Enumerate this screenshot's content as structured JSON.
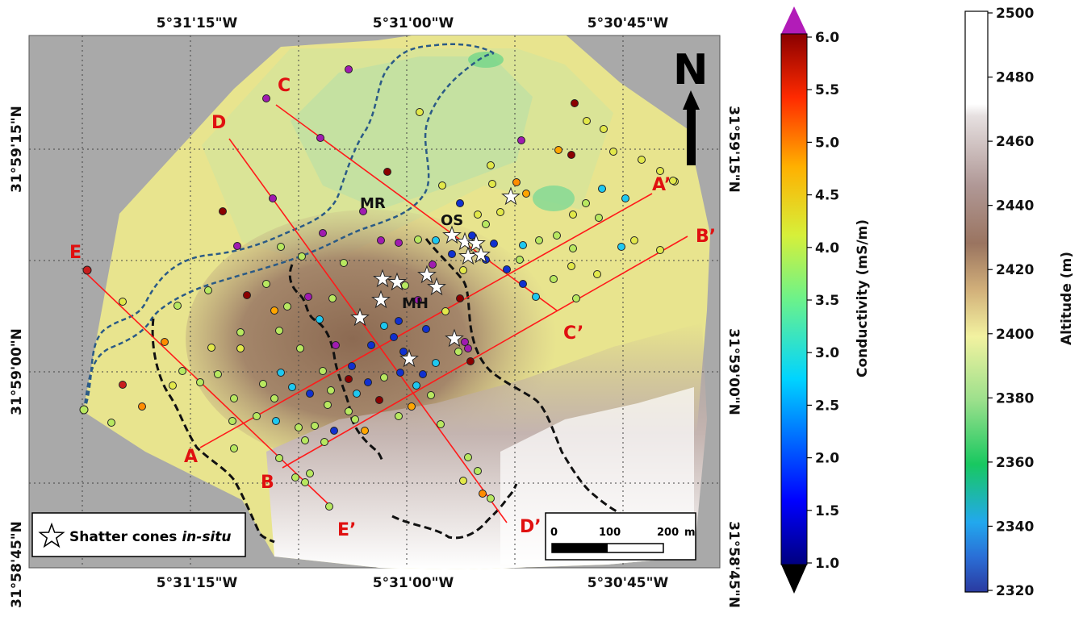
{
  "map": {
    "north_label": "N",
    "coordinates": {
      "top": [
        "5°31'15\"W",
        "5°31'00\"W",
        "5°30'45\"W"
      ],
      "bottom": [
        "5°31'15\"W",
        "5°31'00\"W",
        "5°30'45\"W"
      ],
      "left": [
        "31°59'15\"N",
        "31°59'00\"N",
        "31°58'45\"N"
      ],
      "right": [
        "31°59'15\"N",
        "31°59'00\"N",
        "31°58'45\"N"
      ]
    },
    "site_labels": [
      "MR",
      "OS",
      "MH"
    ],
    "sections": [
      {
        "start": "A",
        "end": "A’"
      },
      {
        "start": "B",
        "end": "B’"
      },
      {
        "start": "C",
        "end": "C’"
      },
      {
        "start": "D",
        "end": "D’"
      },
      {
        "start": "E",
        "end": "E’"
      }
    ],
    "legend": {
      "symbol": "star",
      "text_prefix": "Shatter cones ",
      "text_italic": "in-situ"
    },
    "scale_bar": {
      "ticks": [
        "0",
        "100",
        "200"
      ],
      "unit": "m"
    },
    "colors": {
      "section_line": "#ff1a1a",
      "section_label": "#e01010",
      "drainage_line": "#2a5a86",
      "crater_rim": "#111111",
      "background_gray": "#a8a8a8"
    }
  },
  "conductivity_bar": {
    "title": "Conductivity (mS/m)",
    "ticks": [
      "6.0",
      "5.5",
      "5.0",
      "4.5",
      "4.0",
      "3.5",
      "3.0",
      "2.5",
      "2.0",
      "1.5",
      "1.0"
    ],
    "range": [
      1.0,
      6.0
    ],
    "overflow_high_color": "#b21cb8",
    "underflow_low_color": "#000000"
  },
  "altitude_bar": {
    "title": "Altitude (m)",
    "ticks": [
      "2500",
      "2480",
      "2460",
      "2440",
      "2420",
      "2400",
      "2380",
      "2360",
      "2340",
      "2320"
    ],
    "range": [
      2320,
      2500
    ]
  }
}
